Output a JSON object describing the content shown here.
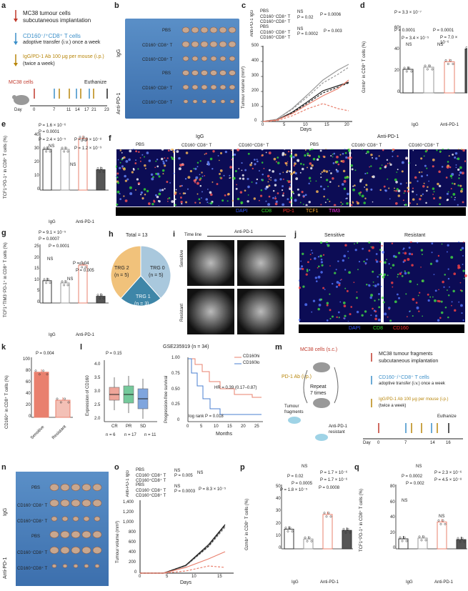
{
  "panels": {
    "a": "a",
    "b": "b",
    "c": "c",
    "d": "d",
    "e": "e",
    "f": "f",
    "g": "g",
    "h": "h",
    "i": "i",
    "j": "j",
    "k": "k",
    "l": "l",
    "m": "m",
    "n": "n",
    "o": "o",
    "p": "p",
    "q": "q"
  },
  "a": {
    "s1": "MC38 tumour cells",
    "s1b": "subcutaneous implantation",
    "s2": "CD160⁻/⁺CD8⁺ T cells",
    "s2b": "adoptive transfer (i.v.) once a week",
    "s3": "IgG/PD-1 Ab 100 μg per mouse (i.p.)",
    "s3b": "(twice a week)",
    "cells": "MC38 cells",
    "day": "Day",
    "days": [
      "0",
      "7",
      "11",
      "14",
      "17",
      "21",
      "23"
    ],
    "end": "Euthanize"
  },
  "groups": {
    "igg": "IgG",
    "pd1": "Anti-PD-1",
    "pbs": "PBS",
    "neg": "CD160⁻CD8⁺ T",
    "pos": "CD160⁺CD8⁺ T"
  },
  "c": {
    "legend_igg": "Anti-PD-1 IgG",
    "l1": "PBS",
    "l2": "CD160⁻CD8⁺ T",
    "l3": "CD160⁺CD8⁺ T",
    "ns": "NS",
    "p1": "P = 0.02",
    "p2": "P = 0.0006",
    "p3": "P = 0.0002",
    "p4": "P = 0.003",
    "ylabel": "Tumour volume (mm³)",
    "xlabel": "Days",
    "yt": [
      "0",
      "100",
      "200",
      "300",
      "400",
      "500"
    ],
    "xt": [
      "0",
      "5",
      "10",
      "15",
      "20"
    ]
  },
  "d": {
    "ylabel": "Gzmb⁺ in CD8⁺ T cells (%)",
    "yt": [
      "0",
      "20",
      "40",
      "60"
    ],
    "p": [
      "P = 3.3 × 10⁻⁷",
      "P = 0.0001",
      "P = 0.0001",
      "P = 3.4 × 10⁻⁵",
      "P = 7.0 × 10⁻⁶",
      "NS",
      "NS"
    ],
    "vals": [
      22,
      24,
      29,
      41,
      38,
      50
    ]
  },
  "e": {
    "ylabel": "TCF1⁺PD-1⁺ in CD8⁺ T cells (%)",
    "yt": [
      "0",
      "10",
      "20",
      "30",
      "40"
    ],
    "p": [
      "P = 1.6 × 10⁻⁶",
      "P = 0.0001",
      "P = 2.4 × 10⁻⁵",
      "P = 6.9 × 10⁻⁸",
      "P = 1.2 × 10⁻⁹",
      "NS",
      "NS"
    ],
    "vals": [
      30,
      30,
      38,
      15,
      14,
      33
    ]
  },
  "f": {
    "legend": [
      "DAPI",
      "CD8",
      "PD-1",
      "TCF1",
      "TIM3"
    ],
    "colors": [
      "#3355ff",
      "#33dd33",
      "#ff3333",
      "#ffaa33",
      "#ff33ff"
    ]
  },
  "g": {
    "ylabel": "TCF1⁺TIM3⁻PD-1⁺ in CD8⁺ T cells (%)",
    "yt": [
      "0",
      "5",
      "10",
      "15",
      "20",
      "25"
    ],
    "p": [
      "P = 9.1 × 10⁻⁵",
      "P = 0.0007",
      "P = 0.0001",
      "P = 0.04",
      "P = 0.005",
      "NS",
      "NS"
    ],
    "vals": [
      10,
      9,
      17,
      3,
      3,
      5
    ]
  },
  "h": {
    "total": "Total = 13",
    "slices": [
      {
        "label": "TRG 0",
        "n": "(n = 5)",
        "value": 5,
        "color": "#a9c8dd"
      },
      {
        "label": "TRG 1",
        "n": "(n = 3)",
        "value": 3,
        "color": "#3e86a8"
      },
      {
        "label": "TRG 2",
        "n": "(n = 5)",
        "value": 5,
        "color": "#f1c27b"
      }
    ]
  },
  "i": {
    "timeline": "Time line",
    "drug": "Anti-PD-1",
    "rows": [
      "Sensitive",
      "Resistant"
    ]
  },
  "j": {
    "cols": [
      "Sensitive",
      "Resistant"
    ],
    "legend": [
      "DAPI",
      "CD8",
      "CD160"
    ],
    "colors": [
      "#3355ff",
      "#33dd33",
      "#ff3333"
    ]
  },
  "k": {
    "ylabel": "CD160⁺ in CD8⁺ T cells (%)",
    "yt": [
      "0",
      "20",
      "40",
      "60",
      "80",
      "100"
    ],
    "p": "P = 0.004",
    "cats": [
      "Sensitive",
      "Resistant"
    ],
    "vals": [
      79,
      30
    ]
  },
  "l": {
    "title": "GSE235919 (n = 34)",
    "ylabel1": "Expression of CD160",
    "ylabel2": "Progression-free survival",
    "xlabel": "Months",
    "p": "P = 0.15",
    "hr": "HR = 0.39 (0.17–0.87)",
    "logrank": "log rank P = 0.018",
    "hi": "CD160hi",
    "lo": "CD160lo",
    "cats": [
      "CR",
      "PR",
      "SD"
    ],
    "ns": [
      "n = 6",
      "n = 17",
      "n = 11"
    ],
    "yt1": [
      "2.0",
      "2.5",
      "3.0",
      "3.5",
      "4.0"
    ],
    "yt2": [
      "0",
      "0.25",
      "0.50",
      "0.75",
      "1.00"
    ],
    "xt": [
      "0",
      "5",
      "10",
      "15",
      "20",
      "25"
    ]
  },
  "m": {
    "s1": "MC38 tumour fragments",
    "s1b": "subcutaneous implantation",
    "s2": "CD160⁻/⁺CD8⁺ T cells",
    "s2b": "adoptive transfer (i.v.) once a week",
    "s3": "IgG/PD-1 Ab 100 μg per mouse (i.p.)",
    "s3b": "(twice a week)",
    "cells": "MC38 cells (s.c.)",
    "ab": "PD-1 Ab (i.p.)",
    "repeat": "Repeat",
    "times": "7 times",
    "frag": "Tumour",
    "frag2": "fragments",
    "res": "Anti-PD-1",
    "res2": "resistant",
    "day": "Day",
    "days": [
      "0",
      "7",
      "14",
      "16"
    ],
    "end": "Euthanize"
  },
  "o": {
    "legend_igg": "Anti-PD-1 IgG",
    "ns": "NS",
    "p1": "P = 0.005",
    "p2": "P = 0.0003",
    "p3": "P = 8.3 × 10⁻⁵",
    "ylabel": "Tumour volume (mm³)",
    "xlabel": "Days",
    "yt": [
      "0",
      "200",
      "400",
      "600",
      "800",
      "1,000",
      "1,200",
      "1,400"
    ],
    "xt": [
      "0",
      "5",
      "10",
      "15"
    ]
  },
  "p": {
    "ylabel": "Gzmb⁺ in CD8⁺ T cells (%)",
    "yt": [
      "0",
      "10",
      "20",
      "30",
      "40",
      "50"
    ],
    "p": [
      "NS",
      "P = 0.02",
      "P = 0.0005",
      "P = 1.8 × 10⁻⁵",
      "P = 1.7 × 10⁻⁶",
      "P = 1.7 × 10⁻⁶",
      "P = 0.0008"
    ],
    "vals": [
      16,
      8,
      28,
      15,
      9,
      41
    ]
  },
  "q": {
    "ylabel": "TCF1⁺PD-1⁺ in CD8⁺ T cells (%)",
    "yt": [
      "0",
      "20",
      "40",
      "60",
      "80"
    ],
    "p": [
      "NS",
      "P = 0.0002",
      "P = 0.002",
      "P = 2.3 × 10⁻⁶",
      "P = 4.5 × 10⁻⁸",
      "NS",
      "NS"
    ],
    "vals": [
      13,
      14,
      35,
      12,
      11,
      58
    ]
  }
}
